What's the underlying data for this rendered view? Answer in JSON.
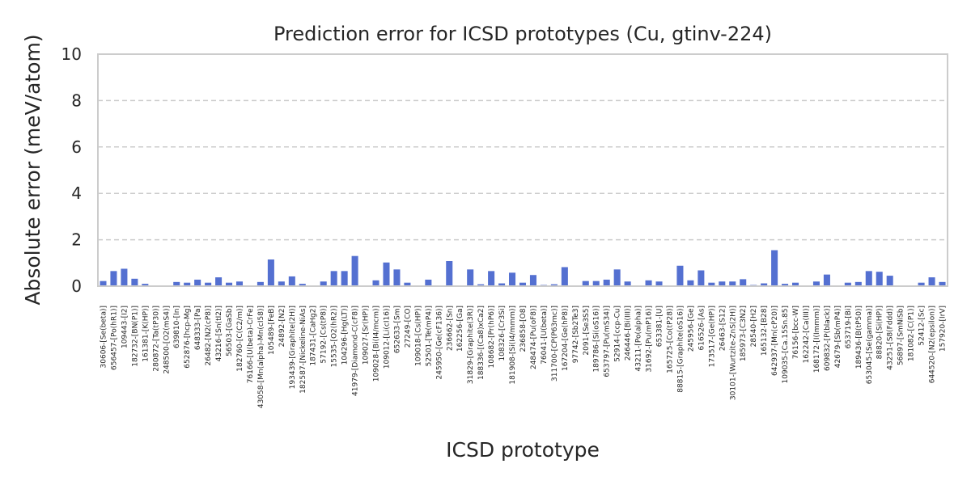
{
  "chart_data": {
    "type": "bar",
    "title": "Prediction error for ICSD prototypes (Cu, gtinv-224)",
    "xlabel": "ICSD prototype",
    "ylabel": "Absolute error (meV/atom)",
    "ylim": [
      0,
      10
    ],
    "yticks": [
      "0",
      "2",
      "4",
      "6",
      "8",
      "10"
    ],
    "grid": "horizontal dashed",
    "bar_color": "#5470d1",
    "categories": [
      "30606-[Se(beta)]",
      "656457-[Po(hR1)]",
      "109443-[I2]",
      "182732-[BN(P1)]",
      "161381-[K(HP)]",
      "280872-[Ta(tP30)]",
      "248500-[O2(mS4)]",
      "639810-[In]",
      "652876-[hcp-Mg]",
      "648333-[Pa]",
      "26482-[N2(cP8)]",
      "43216-[Sn(tI2)]",
      "56503-[GaSb]",
      "182760-[C(C2/m)]",
      "76166-[U(beta)-CrFe]",
      "43058-[Mn(alpha)-Mn(cI58)]",
      "105489-[FeB]",
      "24892-[N2]",
      "193439-[Graphite(2H)]",
      "182587-[Nickeline-NiAs]",
      "187431-[CaHg2]",
      "57192-[Cs(tP8)]",
      "15535-[O2(hR2)]",
      "104296-[Hg(LT)]",
      "41979-[Diamond-C(cF8)]",
      "109027-[Sr(HP)]",
      "109028-[Bi(I4/mcm)]",
      "109012-[Li(cI16)]",
      "652633-[Sm]",
      "27249-[CO]",
      "109018-[Cs(HP)]",
      "52501-[Te(mP4)]",
      "245950-[Ge(cF136)]",
      "236662-[Sn]",
      "162256-[Ga]",
      "31829-[Graphite(3R)]",
      "188336-[(Ca8)xCa2]",
      "108682-[Pr(hP6)]",
      "108326-[Cr3Si]",
      "181908-[Si(I4/mmm)]",
      "236858-[O8]",
      "248474-[Pu(oF8)]",
      "76041-[U(beta)]",
      "311700-[CP(P63mc)]",
      "167204-[Ge(hP8)]",
      "97742-[Sb2Te3]",
      "2091-[Se3S5]",
      "189786-[Si(oS16)]",
      "653797-[Pu(mS34)]",
      "52914-[ccp-Cu]",
      "246446-[Bi(III)]",
      "43211-[Po(alpha)]",
      "31692-[Pu(mP16)]",
      "653381-[U]",
      "165725-[Co(tP28)]",
      "88815-[Graphite(oS16)]",
      "245956-[Ge]",
      "616526-[As]",
      "173517-[Ge(HP)]",
      "26463-[S12]",
      "30101-[Wurtzite-ZnS(2H)]",
      "185973-[C3N2]",
      "28540-[H2]",
      "165132-[B28]",
      "642937-[Mn(cP20)]",
      "109035-[Ca.15Sn.85]",
      "76156-[bcc-W]",
      "162242-[Ca(III)]",
      "168172-[I(Immm)]",
      "609832-[P(black)]",
      "42679-[Sb(mP4)]",
      "653719-[Bi]",
      "189436-[B(tP50)]",
      "653045-[Se(gamma)]",
      "88820-[Si(HP)]",
      "43251-[S8(Fddd)]",
      "56897-[SmNiSb]",
      "181082-[C(P1)]",
      "52412-[Sc]",
      "644520-[N2(epsilon)]",
      "157920-[IrV]"
    ],
    "values": [
      0.22,
      0.65,
      0.75,
      0.32,
      0.1,
      0.0,
      0.0,
      0.18,
      0.15,
      0.28,
      0.15,
      0.38,
      0.15,
      0.2,
      0.0,
      0.18,
      1.15,
      0.2,
      0.42,
      0.1,
      0.0,
      0.2,
      0.65,
      0.65,
      1.3,
      0.0,
      0.25,
      1.02,
      0.72,
      0.15,
      0.0,
      0.28,
      0.0,
      1.08,
      0.0,
      0.72,
      0.08,
      0.65,
      0.12,
      0.58,
      0.15,
      0.48,
      0.05,
      0.08,
      0.82,
      0.0,
      0.22,
      0.22,
      0.28,
      0.72,
      0.2,
      0.0,
      0.25,
      0.2,
      0.0,
      0.88,
      0.25,
      0.68,
      0.15,
      0.2,
      0.2,
      0.3,
      0.05,
      0.12,
      1.55,
      0.1,
      0.15,
      0.0,
      0.2,
      0.5,
      0.0,
      0.15,
      0.18,
      0.65,
      0.62,
      0.45,
      0.0,
      0.0,
      0.15,
      0.38,
      0.18
    ]
  }
}
